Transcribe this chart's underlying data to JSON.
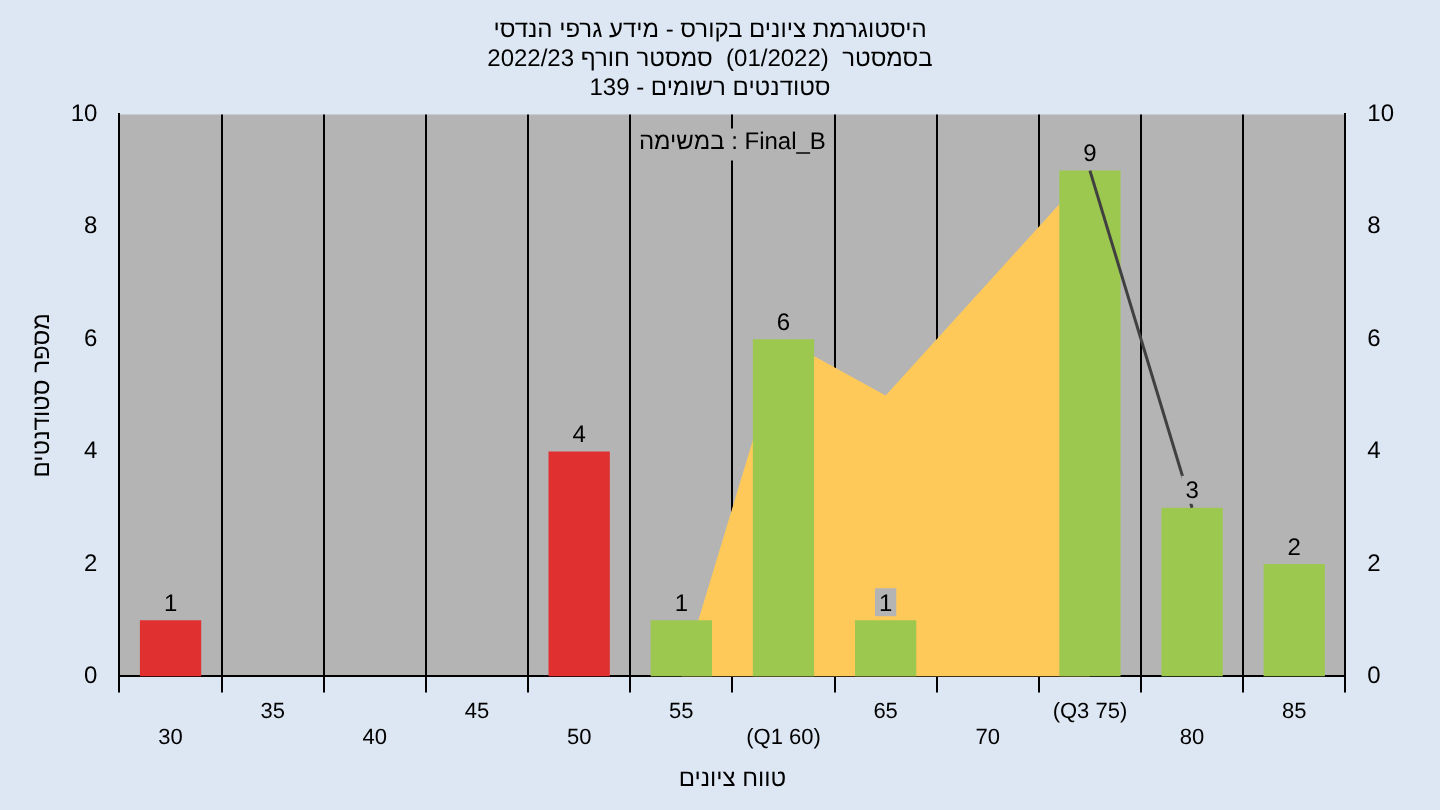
{
  "chart_data": {
    "type": "bar",
    "title": "היסטוגרמת ציונים בקורס - מידע גרפי הנדסי",
    "subtitle": "בסמסטר  (01/2022)  סמסטר חורף 2022/23\nסטודנטים רשומים - 139",
    "xlabel": "טווח ציונים",
    "ylabel": "מספר סטודנטים",
    "annotations": [
      "במשימה : Final_B"
    ],
    "categories": [
      "30",
      "35",
      "40",
      "45",
      "50",
      "55",
      "(Q1 60)",
      "65",
      "70",
      "(Q3 75)",
      "80",
      "85"
    ],
    "series": [
      {
        "colors": [
          "#e03030",
          "#e03030",
          "#e03030",
          "#e03030",
          "#e03030",
          "#9cc850",
          "#9cc850",
          "#9cc850",
          "#9cc850",
          "#9cc850",
          "#9cc850",
          "#9cc850"
        ],
        "values": [
          1,
          0,
          0,
          0,
          4,
          1,
          6,
          1,
          0,
          9,
          3,
          2
        ],
        "value_labels": [
          "1",
          null,
          null,
          null,
          "4",
          "1",
          "6",
          "1",
          null,
          "9",
          "3",
          "2"
        ]
      },
      {
        "type": "area",
        "color": "#ffc95a",
        "values": [
          null,
          null,
          null,
          null,
          null,
          0,
          6,
          5,
          7,
          9,
          null,
          null
        ]
      },
      {
        "type": "line",
        "color": "#404040",
        "values": [
          null,
          null,
          null,
          null,
          null,
          null,
          null,
          null,
          null,
          9,
          3,
          null
        ]
      }
    ],
    "ylim": [
      0,
      10
    ],
    "yticks": [
      0,
      2,
      4,
      6,
      8,
      10
    ],
    "y2lim": [
      0,
      10
    ],
    "y2ticks": [
      0,
      2,
      4,
      6,
      8,
      10
    ],
    "grid": "x",
    "legend": false
  }
}
